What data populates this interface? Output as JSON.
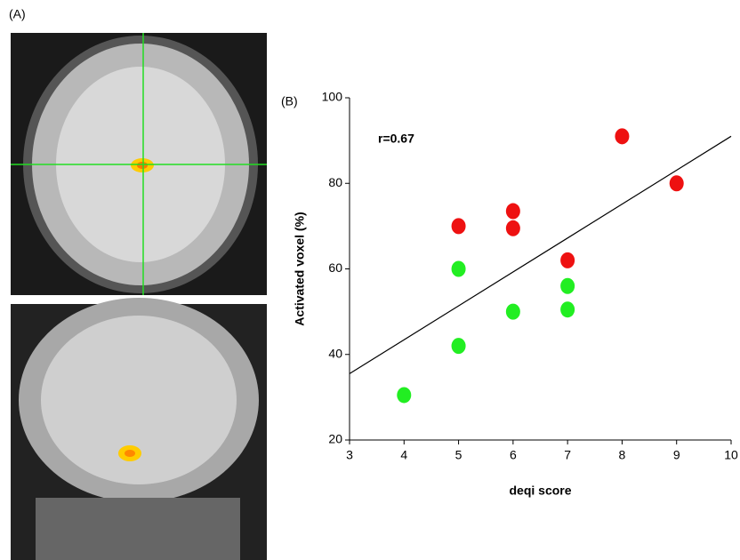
{
  "panel_labels": {
    "a": "(A)",
    "b": "(B)"
  },
  "chart_data": {
    "type": "scatter",
    "x_label": "deqi score",
    "y_label": "Activated voxel (%)",
    "annotation": "r=0.67",
    "xlim": [
      3,
      10
    ],
    "xticks": [
      3,
      4,
      5,
      6,
      7,
      8,
      9,
      10
    ],
    "ylim": [
      20,
      100
    ],
    "yticks": [
      20,
      40,
      60,
      80,
      100
    ],
    "grid": false,
    "series": [
      {
        "color": "#ee1111",
        "x": [
          5,
          6,
          6,
          7,
          8,
          9
        ],
        "values": [
          70,
          73.5,
          69.5,
          62,
          91,
          80
        ]
      },
      {
        "color": "#22ee22",
        "x": [
          4,
          5,
          5,
          6,
          7,
          7
        ],
        "values": [
          30.5,
          60,
          42,
          50,
          56,
          50.5
        ]
      }
    ],
    "trend_line": {
      "color": "#000000",
      "x": [
        3,
        10
      ],
      "values": [
        35.5,
        91
      ]
    }
  }
}
